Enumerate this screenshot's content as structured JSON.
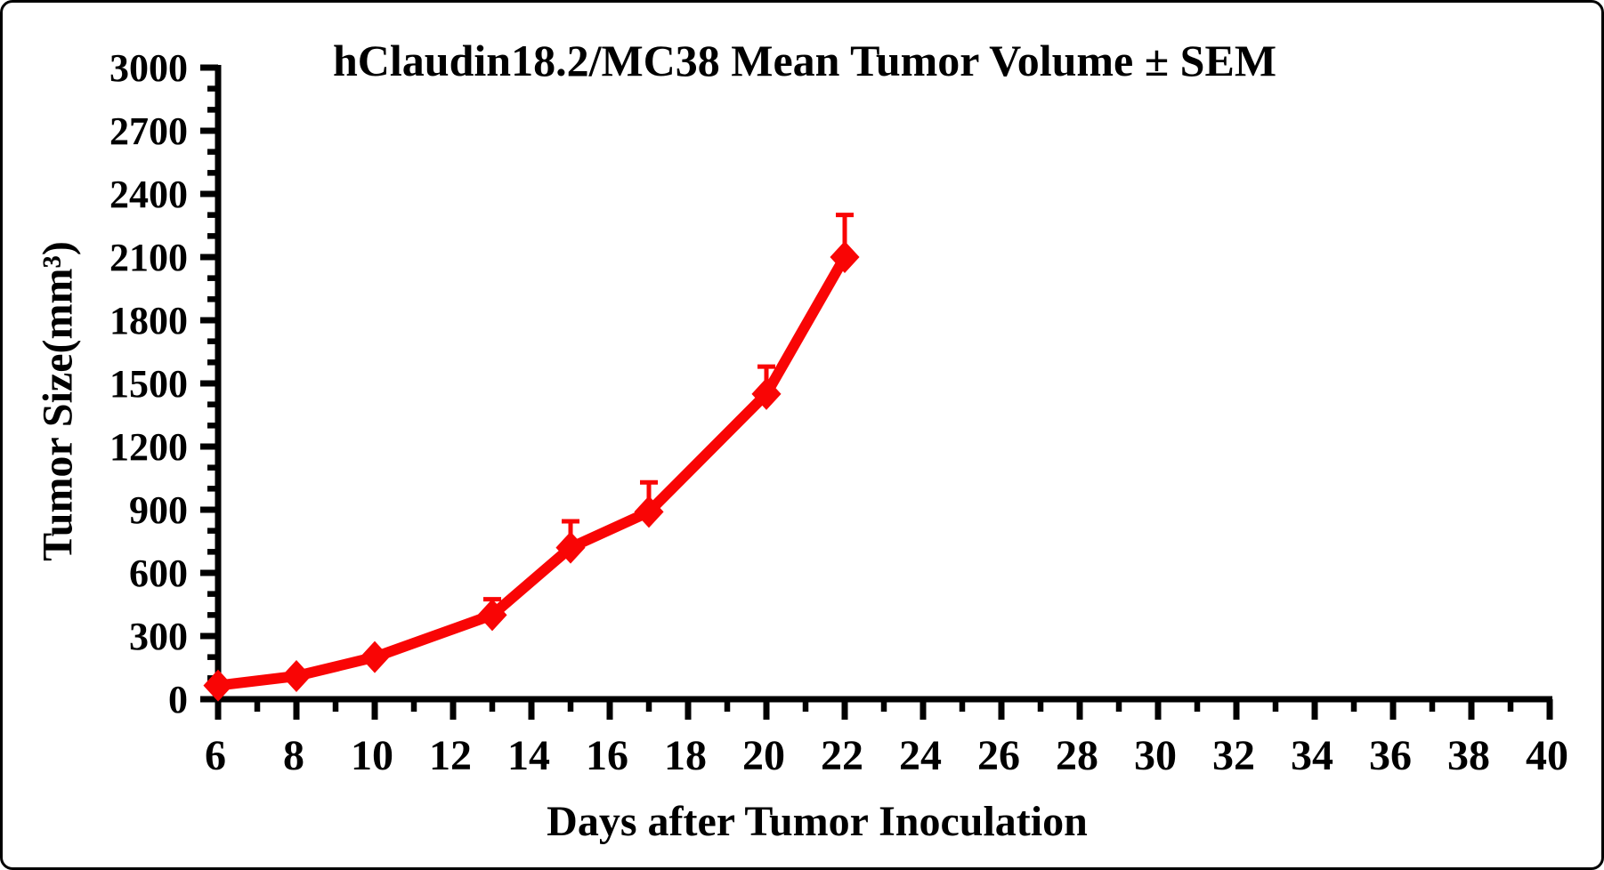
{
  "frame": {
    "background_color": "#ffffff",
    "border_color": "#000000"
  },
  "chart_data": {
    "type": "line",
    "title": "hClaudin18.2/MC38 Mean Tumor Volume ± SEM",
    "xlabel": "Days after Tumor Inoculation",
    "ylabel": "Tumor Size(mm³)",
    "x": [
      6,
      8,
      10,
      13,
      15,
      17,
      20,
      22
    ],
    "series": [
      {
        "name": "hClaudin18.2/MC38 mean tumor volume",
        "color": "#f90505",
        "marker": "diamond",
        "values": [
          65,
          110,
          200,
          400,
          720,
          890,
          1450,
          2100
        ],
        "sem_upper": [
          0,
          0,
          0,
          75,
          125,
          140,
          130,
          200
        ]
      }
    ],
    "x_axis": {
      "min": 6,
      "max": 40,
      "major_ticks": [
        6,
        8,
        10,
        12,
        14,
        16,
        18,
        20,
        22,
        24,
        26,
        28,
        30,
        32,
        34,
        36,
        38,
        40
      ],
      "minor_step": 1
    },
    "y_axis": {
      "min": 0,
      "max": 3000,
      "major_ticks": [
        0,
        300,
        600,
        900,
        1200,
        1500,
        1800,
        2100,
        2400,
        2700,
        3000
      ],
      "minor_step": 100
    },
    "grid": false,
    "legend_position": "none",
    "axis_color": "#000000"
  }
}
